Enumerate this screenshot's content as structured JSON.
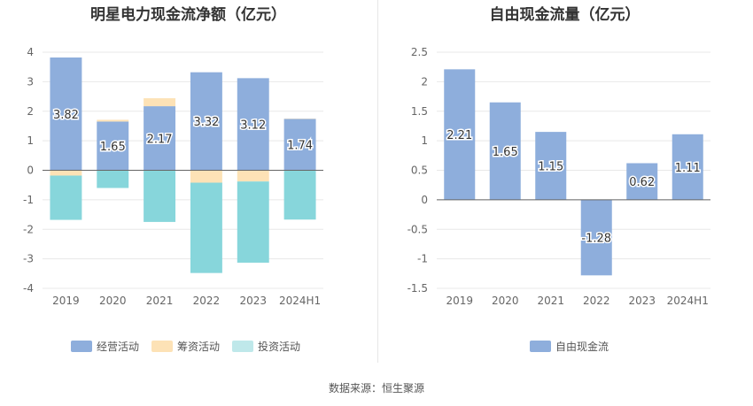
{
  "source_text": "数据来源：恒生聚源",
  "chart_data": [
    {
      "type": "bar",
      "stacked": true,
      "title": "明星电力现金流净额（亿元）",
      "categories": [
        "2019",
        "2020",
        "2021",
        "2022",
        "2023",
        "2024H1"
      ],
      "ylim": [
        -4,
        4
      ],
      "yticks": [
        -4,
        -3,
        -2,
        -1,
        0,
        1,
        2,
        3,
        4
      ],
      "grid": true,
      "legend_position": "bottom",
      "series": [
        {
          "name": "经营活动",
          "color": "#8eaedc",
          "values": [
            3.82,
            1.65,
            2.17,
            3.32,
            3.12,
            1.74
          ],
          "labels": [
            "3.82",
            "1.65",
            "2.17",
            "3.32",
            "3.12",
            "1.74"
          ]
        },
        {
          "name": "筹资活动",
          "color": "#fde2b6",
          "values": [
            -0.18,
            0.06,
            0.27,
            -0.42,
            -0.38,
            0.01
          ]
        },
        {
          "name": "投资活动",
          "color": "#87d6db",
          "values": [
            -1.5,
            -0.6,
            -1.75,
            -3.06,
            -2.75,
            -1.67
          ]
        }
      ]
    },
    {
      "type": "bar",
      "title": "自由现金流量（亿元）",
      "categories": [
        "2019",
        "2020",
        "2021",
        "2022",
        "2023",
        "2024H1"
      ],
      "ylim": [
        -1.5,
        2.5
      ],
      "yticks": [
        -1.5,
        -1,
        -0.5,
        0,
        0.5,
        1,
        1.5,
        2,
        2.5
      ],
      "grid": true,
      "legend_position": "bottom",
      "series": [
        {
          "name": "自由现金流",
          "color": "#8eaedc",
          "values": [
            2.21,
            1.65,
            1.15,
            -1.28,
            0.62,
            1.11
          ],
          "labels": [
            "2.21",
            "1.65",
            "1.15",
            "-1.28",
            "0.62",
            "1.11"
          ]
        }
      ]
    }
  ]
}
